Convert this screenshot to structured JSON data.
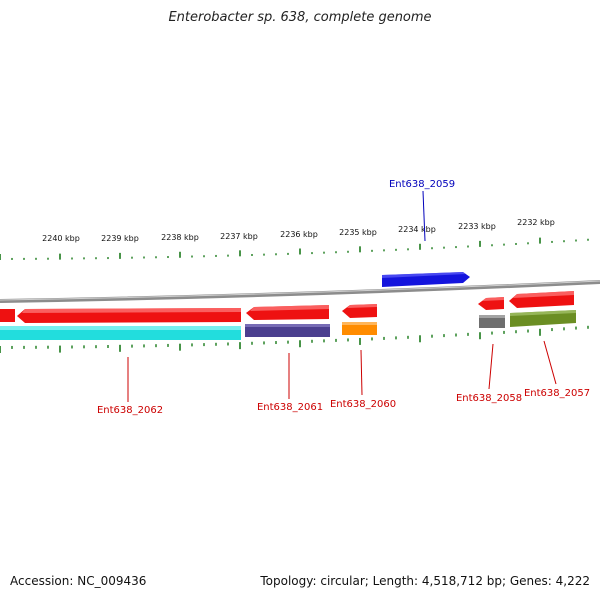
{
  "title": "Enterobacter sp. 638, complete genome",
  "footer": {
    "accession": "Accession: NC_009436",
    "summary": "Topology: circular; Length: 4,518,712 bp; Genes: 4,222"
  },
  "colors": {
    "tick": "#1a7a1a",
    "backbone": "#8c8c8c",
    "red": "#ee1111",
    "cyan": "#22dddd",
    "navy": "#4b3f8f",
    "orange": "#ff8c00",
    "blue": "#1414dd",
    "gray": "#6e6e6e",
    "olive": "#6b8e23",
    "label_red": "#cc0000",
    "label_blue": "#0000bb"
  },
  "scale": {
    "labels": [
      "2240 kbp",
      "2239 kbp",
      "2238 kbp",
      "2237 kbp",
      "2236 kbp",
      "2235 kbp",
      "2234 kbp",
      "2233 kbp",
      "2232 kbp"
    ]
  },
  "genes": [
    {
      "label": "Ent638_2062",
      "kind": "forward",
      "color": "red"
    },
    {
      "label": "Ent638_2061",
      "kind": "forward",
      "color": "red"
    },
    {
      "label": "Ent638_2060",
      "kind": "forward",
      "color": "red"
    },
    {
      "label": "Ent638_2059",
      "kind": "reverse",
      "color": "blue"
    },
    {
      "label": "Ent638_2058",
      "kind": "forward",
      "color": "red"
    },
    {
      "label": "Ent638_2057",
      "kind": "forward",
      "color": "red"
    }
  ]
}
